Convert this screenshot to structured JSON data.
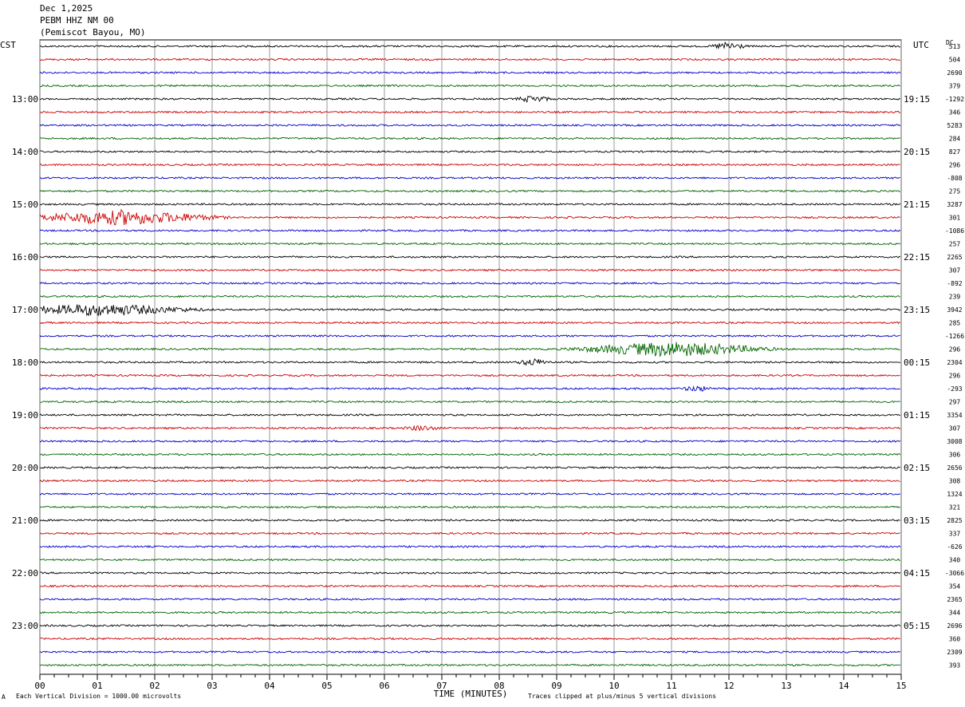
{
  "header": {
    "line1": "Dec 1,2025",
    "line2": "PEBM HHZ NM 00",
    "line3": "(Pemiscot Bayou, MO)"
  },
  "left_axis_label": "CST",
  "right_axis_label": "UTC",
  "dc_label": "DC",
  "footer": {
    "scale_note": "Each Vertical Division = 1000.00 microvolts",
    "clip_note": "Traces clipped at plus/minus 5 vertical divisions",
    "corner_mark": "A"
  },
  "colors": {
    "black": "#000000",
    "red": "#cc0000",
    "blue": "#0000cc",
    "green": "#006400",
    "grid": "#808080"
  },
  "chart_data": {
    "type": "line",
    "title": "",
    "xlabel": "TIME (MINUTES)",
    "xlim": [
      0,
      15
    ],
    "x_ticks": [
      "00",
      "01",
      "02",
      "03",
      "04",
      "05",
      "06",
      "07",
      "08",
      "09",
      "10",
      "11",
      "12",
      "13",
      "14",
      "15"
    ],
    "trace_colors": [
      "black",
      "red",
      "blue",
      "green"
    ],
    "cst_hour_labels": [
      "13:00",
      "14:00",
      "15:00",
      "16:00",
      "17:00",
      "18:00",
      "19:00",
      "20:00",
      "21:00",
      "22:00",
      "23:00"
    ],
    "utc_hour_labels": [
      "19:15",
      "20:15",
      "21:15",
      "22:15",
      "23:15",
      "00:15",
      "01:15",
      "02:15",
      "03:15",
      "04:15",
      "05:15"
    ],
    "dc_offsets": [
      "513",
      "504",
      "2690",
      "379",
      "-1292",
      "346",
      "5283",
      "284",
      "827",
      "296",
      "-808",
      "275",
      "3287",
      "301",
      "-1086",
      "257",
      "2265",
      "307",
      "-892",
      "239",
      "3942",
      "285",
      "-1266",
      "296",
      "2304",
      "296",
      "-293",
      "297",
      "3354",
      "307",
      "3008",
      "306",
      "2656",
      "308",
      "1324",
      "321",
      "2825",
      "337",
      "-626",
      "340",
      "-3066",
      "354",
      "2365",
      "344",
      "2696",
      "360",
      "2309",
      "393"
    ],
    "events": [
      {
        "trace": 0,
        "minute": 12.0,
        "amplitude": 5
      },
      {
        "trace": 4,
        "minute": 8.6,
        "amplitude": 4
      },
      {
        "trace": 13,
        "minute": 1.4,
        "amplitude": 9
      },
      {
        "trace": 20,
        "minute": 1.05,
        "amplitude": 7
      },
      {
        "trace": 23,
        "minute": 11.0,
        "amplitude": 9
      },
      {
        "trace": 24,
        "minute": 8.6,
        "amplitude": 4
      },
      {
        "trace": 26,
        "minute": 11.45,
        "amplitude": 3
      },
      {
        "trace": 29,
        "minute": 6.65,
        "amplitude": 3
      }
    ]
  }
}
